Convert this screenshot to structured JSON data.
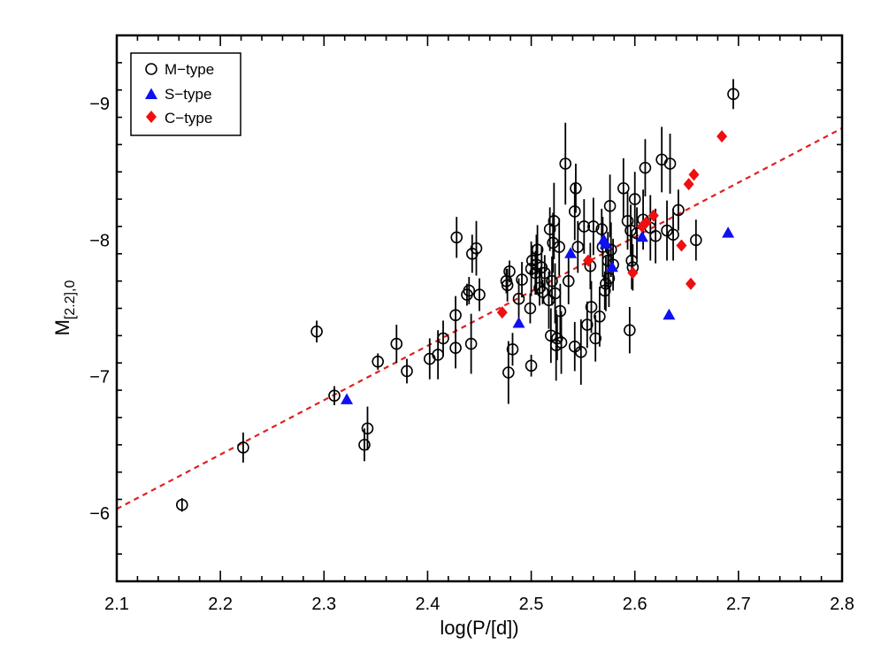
{
  "chart_data": {
    "type": "scatter",
    "xlabel": "log(P/[d])",
    "ylabel_main": "M",
    "ylabel_sub": "[2.2],0",
    "xlim": [
      2.1,
      2.8
    ],
    "ylim": [
      -5.5,
      -9.5
    ],
    "y_inverted": true,
    "x_ticks": [
      2.1,
      2.2,
      2.3,
      2.4,
      2.5,
      2.6,
      2.7,
      2.8
    ],
    "x_tick_labels": [
      "2.1",
      "2.2",
      "2.3",
      "2.4",
      "2.5",
      "2.6",
      "2.7",
      "2.8"
    ],
    "y_ticks": [
      -6,
      -7,
      -8,
      -9
    ],
    "y_tick_labels": [
      "−6",
      "−7",
      "−8",
      "−9"
    ],
    "grid": false,
    "legend_position": "top-left",
    "fit_line": {
      "x": [
        2.1,
        2.8
      ],
      "y": [
        -6.03,
        -8.82
      ],
      "color": "#e0201f",
      "style": "dashed"
    },
    "series": [
      {
        "name": "M−type",
        "marker": "open-circle",
        "color": "#000000",
        "points": [
          [
            2.163,
            -6.06,
            0.05
          ],
          [
            2.222,
            -6.48,
            0.11
          ],
          [
            2.293,
            -7.33,
            0.08
          ],
          [
            2.31,
            -6.86,
            0.07
          ],
          [
            2.339,
            -6.5,
            0.12
          ],
          [
            2.342,
            -6.62,
            0.16
          ],
          [
            2.352,
            -7.11,
            0.06
          ],
          [
            2.37,
            -7.24,
            0.14
          ],
          [
            2.38,
            -7.04,
            0.09
          ],
          [
            2.402,
            -7.13,
            0.15
          ],
          [
            2.41,
            -7.16,
            0.18
          ],
          [
            2.415,
            -7.28,
            0.13
          ],
          [
            2.427,
            -7.21,
            0.15
          ],
          [
            2.427,
            -7.45,
            0.14
          ],
          [
            2.428,
            -8.02,
            0.15
          ],
          [
            2.438,
            -7.6,
            0.08
          ],
          [
            2.44,
            -7.63,
            0.1
          ],
          [
            2.442,
            -7.24,
            0.22
          ],
          [
            2.443,
            -7.9,
            0.14
          ],
          [
            2.447,
            -7.94,
            0.2
          ],
          [
            2.45,
            -7.6,
            0.12
          ],
          [
            2.476,
            -7.7,
            0.09
          ],
          [
            2.477,
            -7.67,
            0.12
          ],
          [
            2.478,
            -7.03,
            0.23
          ],
          [
            2.479,
            -7.77,
            0.08
          ],
          [
            2.482,
            -7.2,
            0.12
          ],
          [
            2.488,
            -7.57,
            0.15
          ],
          [
            2.491,
            -7.71,
            0.13
          ],
          [
            2.499,
            -7.5,
            0.11
          ],
          [
            2.5,
            -7.08,
            0.08
          ],
          [
            2.5,
            -7.79,
            0.2
          ],
          [
            2.501,
            -7.85,
            0.11
          ],
          [
            2.504,
            -7.76,
            0.16
          ],
          [
            2.505,
            -7.82,
            0.22
          ],
          [
            2.506,
            -7.93,
            0.18
          ],
          [
            2.508,
            -7.65,
            0.13
          ],
          [
            2.51,
            -7.8,
            0.15
          ],
          [
            2.511,
            -7.62,
            0.09
          ],
          [
            2.513,
            -7.76,
            0.13
          ],
          [
            2.517,
            -7.56,
            0.21
          ],
          [
            2.518,
            -8.08,
            0.16
          ],
          [
            2.519,
            -7.3,
            0.2
          ],
          [
            2.52,
            -7.7,
            0.18
          ],
          [
            2.521,
            -7.98,
            0.22
          ],
          [
            2.522,
            -8.14,
            0.28
          ],
          [
            2.523,
            -7.61,
            0.22
          ],
          [
            2.524,
            -7.23,
            0.26
          ],
          [
            2.525,
            -7.28,
            0.16
          ],
          [
            2.527,
            -7.95,
            0.21
          ],
          [
            2.528,
            -7.48,
            0.2
          ],
          [
            2.529,
            -7.25,
            0.23
          ],
          [
            2.533,
            -8.56,
            0.3
          ],
          [
            2.536,
            -7.7,
            0.17
          ],
          [
            2.542,
            -7.22,
            0.18
          ],
          [
            2.542,
            -8.21,
            0.21
          ],
          [
            2.543,
            -8.38,
            0.18
          ],
          [
            2.545,
            -7.95,
            0.19
          ],
          [
            2.548,
            -7.18,
            0.24
          ],
          [
            2.551,
            -8.1,
            0.2
          ],
          [
            2.554,
            -7.38,
            0.17
          ],
          [
            2.557,
            -7.81,
            0.17
          ],
          [
            2.558,
            -7.51,
            0.19
          ],
          [
            2.56,
            -8.1,
            0.21
          ],
          [
            2.562,
            -7.28,
            0.17
          ],
          [
            2.566,
            -7.44,
            0.22
          ],
          [
            2.568,
            -8.08,
            0.15
          ],
          [
            2.569,
            -7.95,
            0.22
          ],
          [
            2.571,
            -7.63,
            0.14
          ],
          [
            2.572,
            -7.68,
            0.2
          ],
          [
            2.574,
            -7.85,
            0.21
          ],
          [
            2.575,
            -7.72,
            0.21
          ],
          [
            2.576,
            -8.25,
            0.23
          ],
          [
            2.577,
            -7.93,
            0.2
          ],
          [
            2.579,
            -7.82,
            0.19
          ],
          [
            2.589,
            -8.38,
            0.22
          ],
          [
            2.593,
            -8.14,
            0.21
          ],
          [
            2.595,
            -7.34,
            0.17
          ],
          [
            2.596,
            -8.07,
            0.19
          ],
          [
            2.597,
            -7.85,
            0.21
          ],
          [
            2.598,
            -7.8,
            0.17
          ],
          [
            2.6,
            -8.3,
            0.2
          ],
          [
            2.602,
            -8.05,
            0.19
          ],
          [
            2.608,
            -8.15,
            0.22
          ],
          [
            2.61,
            -8.53,
            0.21
          ],
          [
            2.615,
            -8.09,
            0.24
          ],
          [
            2.62,
            -8.03,
            0.2
          ],
          [
            2.626,
            -8.59,
            0.24
          ],
          [
            2.631,
            -8.07,
            0.22
          ],
          [
            2.634,
            -8.56,
            0.22
          ],
          [
            2.637,
            -8.04,
            0.19
          ],
          [
            2.642,
            -8.22,
            0.15
          ],
          [
            2.659,
            -8.0,
            0.15
          ],
          [
            2.695,
            -9.07,
            0.11
          ]
        ]
      },
      {
        "name": "S−type",
        "marker": "filled-triangle",
        "color": "#1010f0",
        "points": [
          [
            2.322,
            -6.83
          ],
          [
            2.488,
            -7.39
          ],
          [
            2.538,
            -7.9
          ],
          [
            2.57,
            -8.0
          ],
          [
            2.572,
            -7.97
          ],
          [
            2.578,
            -7.8
          ],
          [
            2.607,
            -8.02
          ],
          [
            2.633,
            -7.45
          ],
          [
            2.69,
            -8.05
          ]
        ]
      },
      {
        "name": "C−type",
        "marker": "filled-diamond",
        "color": "#ee1010",
        "points": [
          [
            2.472,
            -7.47
          ],
          [
            2.555,
            -7.85
          ],
          [
            2.598,
            -7.76
          ],
          [
            2.607,
            -8.1
          ],
          [
            2.611,
            -8.13
          ],
          [
            2.618,
            -8.18
          ],
          [
            2.645,
            -7.96
          ],
          [
            2.652,
            -8.41
          ],
          [
            2.654,
            -7.68
          ],
          [
            2.657,
            -8.48
          ],
          [
            2.684,
            -8.76
          ]
        ]
      }
    ]
  }
}
